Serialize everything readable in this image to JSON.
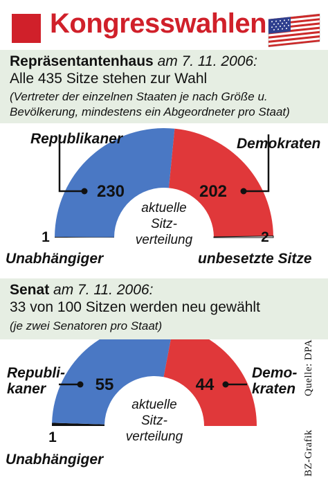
{
  "header": {
    "title": "Kongresswahlen",
    "flag_icon": "us-flag-icon"
  },
  "house": {
    "heading_bold": "Repräsentantenhaus",
    "heading_date": " am 7. 11. 2006:",
    "subheading": "Alle 435 Sitze stehen zur Wahl",
    "note_line1": "(Vertreter der einzelnen Staaten je nach Größe u.",
    "note_line2": "Bevölkerung, mindestens ein Abgeordneter pro Staat)",
    "label_left": "Republikaner",
    "label_right": "Demokraten",
    "label_bottom_left": "Unabhängiger",
    "label_bottom_right": "unbesetzte Sitze",
    "center_line1": "aktuelle",
    "center_line2": "Sitz-",
    "center_line3": "verteilung"
  },
  "senate": {
    "heading_bold": "Senat",
    "heading_date": " am 7. 11. 2006:",
    "subheading": "33 von 100 Sitzen werden neu gewählt",
    "note": "(je zwei Senatoren pro Staat)",
    "label_left_1": "Republi-",
    "label_left_2": "kaner",
    "label_right_1": "Demo-",
    "label_right_2": "kraten",
    "label_bottom_left": "Unabhängiger",
    "center_line1": "aktuelle",
    "center_line2": "Sitz-",
    "center_line3": "verteilung"
  },
  "credits": {
    "source": "Quelle: DPA",
    "graphic": "BZ-Grafik"
  },
  "colors": {
    "accent": "#d0202a",
    "republican": "#4a78c4",
    "democrat": "#e0383a",
    "independent": "#111111",
    "vacant": "#ffffff",
    "band": "#e6eee3"
  },
  "chart_data": [
    {
      "type": "pie",
      "title": "aktuelle Sitzverteilung",
      "chamber": "Repräsentantenhaus",
      "categories": [
        "Unabhängiger",
        "Republikaner",
        "Demokraten",
        "unbesetzte Sitze"
      ],
      "values": [
        1,
        230,
        202,
        2
      ],
      "labels": [
        "1",
        "230",
        "202",
        "2"
      ],
      "total": 435
    },
    {
      "type": "pie",
      "title": "aktuelle Sitzverteilung",
      "chamber": "Senat",
      "categories": [
        "Unabhängiger",
        "Republikaner",
        "Demokraten"
      ],
      "values": [
        1,
        55,
        44
      ],
      "labels": [
        "1",
        "55",
        "44"
      ],
      "total": 100
    }
  ]
}
